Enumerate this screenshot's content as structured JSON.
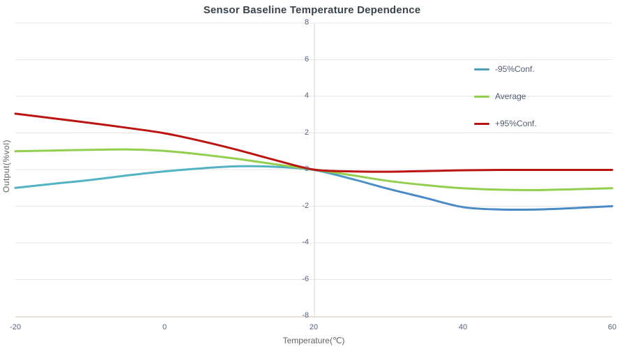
{
  "title": "Sensor Baseline Temperature Dependence",
  "axes": {
    "x": {
      "label": "Temperature(℃)",
      "ticks": [
        -20,
        0,
        20,
        40,
        60
      ]
    },
    "y": {
      "label": "Output(%vol)",
      "ticks": [
        8,
        6,
        4,
        2,
        0,
        -2,
        -4,
        -6,
        -8
      ]
    }
  },
  "legend": {
    "items": [
      {
        "label": "-95%Conf.",
        "color": "#4aa0bd"
      },
      {
        "label": "Average",
        "color": "#92cf4e"
      },
      {
        "label": "+95%Conf.",
        "color": "#b51411"
      }
    ]
  },
  "colors": {
    "grid": "#e7e7e7",
    "axis_line": "#e8e1d4",
    "title_text": "#3b434c",
    "tick_text": "#55607a",
    "axis_title_text": "#606468"
  },
  "chart_data": {
    "type": "line",
    "title": "Sensor Baseline Temperature Dependence",
    "xlabel": "Temperature(℃)",
    "ylabel": "Output(%vol)",
    "xlim": [
      -20,
      60
    ],
    "ylim": [
      -8,
      8
    ],
    "grid": true,
    "legend_position": "right-inside",
    "x": [
      -20,
      -15,
      -10,
      -5,
      0,
      5,
      10,
      15,
      20,
      25,
      30,
      35,
      40,
      45,
      50,
      55,
      60
    ],
    "series": [
      {
        "name": "-95%Conf.",
        "gradient": [
          "#53b3c2",
          "#4a8ac6"
        ],
        "values": [
          -1.0,
          -0.78,
          -0.57,
          -0.32,
          -0.1,
          0.07,
          0.18,
          0.15,
          -0.02,
          -0.5,
          -1.05,
          -1.55,
          -2.05,
          -2.18,
          -2.18,
          -2.1,
          -2.0
        ]
      },
      {
        "name": "Average",
        "color": "#92cf4e",
        "values": [
          1.0,
          1.04,
          1.08,
          1.1,
          1.02,
          0.82,
          0.57,
          0.28,
          0.0,
          -0.3,
          -0.62,
          -0.85,
          -1.02,
          -1.1,
          -1.12,
          -1.07,
          -1.02
        ]
      },
      {
        "name": "+95%Conf.",
        "color": "#bb1411",
        "values": [
          3.05,
          2.8,
          2.55,
          2.28,
          1.98,
          1.55,
          1.05,
          0.5,
          0.0,
          -0.1,
          -0.12,
          -0.08,
          -0.04,
          -0.02,
          -0.02,
          -0.02,
          -0.02
        ]
      }
    ]
  }
}
